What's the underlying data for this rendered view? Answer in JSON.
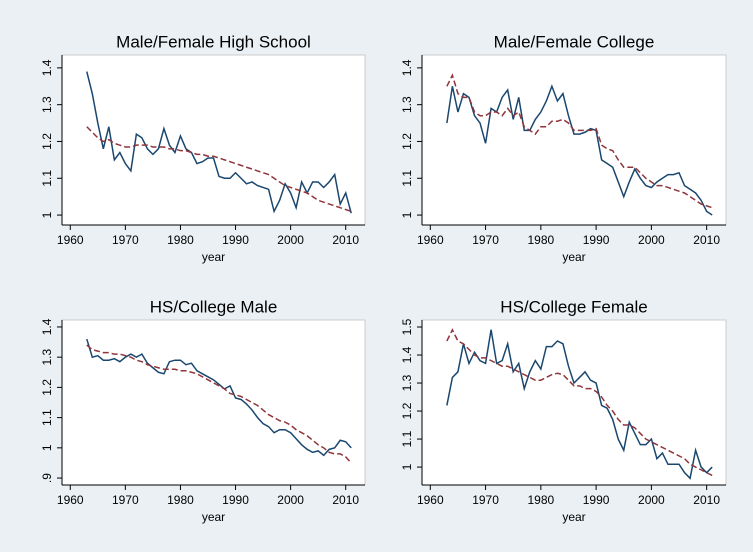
{
  "chart_data": [
    {
      "type": "line",
      "title": "Male/Female High School",
      "xlabel": "year",
      "x": [
        1963,
        1964,
        1965,
        1966,
        1967,
        1968,
        1969,
        1970,
        1971,
        1972,
        1973,
        1974,
        1975,
        1976,
        1977,
        1978,
        1979,
        1980,
        1981,
        1982,
        1983,
        1984,
        1985,
        1986,
        1987,
        1988,
        1989,
        1990,
        1991,
        1992,
        1993,
        1994,
        1995,
        1996,
        1997,
        1998,
        1999,
        2000,
        2001,
        2002,
        2003,
        2004,
        2005,
        2006,
        2007,
        2008,
        2009,
        2010,
        2011
      ],
      "series": [
        {
          "color": "#1a476f",
          "values": [
            1.39,
            1.33,
            1.25,
            1.18,
            1.24,
            1.15,
            1.17,
            1.14,
            1.12,
            1.22,
            1.21,
            1.18,
            1.165,
            1.18,
            1.235,
            1.19,
            1.17,
            1.215,
            1.18,
            1.17,
            1.14,
            1.145,
            1.155,
            1.155,
            1.105,
            1.1,
            1.1,
            1.115,
            1.1,
            1.085,
            1.09,
            1.08,
            1.075,
            1.07,
            1.01,
            1.04,
            1.085,
            1.06,
            1.02,
            1.09,
            1.06,
            1.09,
            1.09,
            1.075,
            1.09,
            1.11,
            1.03,
            1.06,
            1.005
          ]
        },
        {
          "color": "#90353b",
          "dashed": true,
          "values": [
            1.24,
            1.225,
            1.21,
            1.2,
            1.205,
            1.195,
            1.19,
            1.185,
            1.185,
            1.19,
            1.19,
            1.19,
            1.185,
            1.185,
            1.185,
            1.18,
            1.18,
            1.175,
            1.175,
            1.17,
            1.165,
            1.165,
            1.16,
            1.16,
            1.155,
            1.15,
            1.145,
            1.14,
            1.135,
            1.13,
            1.125,
            1.12,
            1.115,
            1.11,
            1.1,
            1.09,
            1.08,
            1.075,
            1.07,
            1.065,
            1.06,
            1.05,
            1.04,
            1.035,
            1.03,
            1.025,
            1.02,
            1.015,
            1.01
          ]
        }
      ],
      "xlim": [
        1958.5,
        2013.5
      ],
      "xticks": [
        1960,
        1970,
        1980,
        1990,
        2000,
        2010
      ],
      "ylim": [
        0.973,
        1.435
      ],
      "yticks": [
        1,
        1.1,
        1.2,
        1.3,
        1.4
      ]
    },
    {
      "type": "line",
      "title": "Male/Female College",
      "xlabel": "year",
      "x": [
        1963,
        1964,
        1965,
        1966,
        1967,
        1968,
        1969,
        1970,
        1971,
        1972,
        1973,
        1974,
        1975,
        1976,
        1977,
        1978,
        1979,
        1980,
        1981,
        1982,
        1983,
        1984,
        1985,
        1986,
        1987,
        1988,
        1989,
        1990,
        1991,
        1992,
        1993,
        1994,
        1995,
        1996,
        1997,
        1998,
        1999,
        2000,
        2001,
        2002,
        2003,
        2004,
        2005,
        2006,
        2007,
        2008,
        2009,
        2010,
        2011
      ],
      "series": [
        {
          "color": "#1a476f",
          "values": [
            1.25,
            1.35,
            1.28,
            1.33,
            1.32,
            1.27,
            1.25,
            1.195,
            1.29,
            1.28,
            1.32,
            1.34,
            1.26,
            1.32,
            1.23,
            1.23,
            1.26,
            1.28,
            1.31,
            1.35,
            1.31,
            1.33,
            1.27,
            1.22,
            1.22,
            1.225,
            1.235,
            1.23,
            1.15,
            1.14,
            1.13,
            1.09,
            1.05,
            1.09,
            1.125,
            1.1,
            1.08,
            1.075,
            1.09,
            1.1,
            1.11,
            1.11,
            1.115,
            1.08,
            1.07,
            1.06,
            1.04,
            1.01,
            1.0
          ]
        },
        {
          "color": "#90353b",
          "dashed": true,
          "values": [
            1.35,
            1.38,
            1.33,
            1.32,
            1.32,
            1.28,
            1.27,
            1.27,
            1.28,
            1.28,
            1.27,
            1.29,
            1.27,
            1.28,
            1.24,
            1.23,
            1.22,
            1.24,
            1.24,
            1.255,
            1.255,
            1.26,
            1.25,
            1.23,
            1.23,
            1.23,
            1.23,
            1.235,
            1.19,
            1.18,
            1.175,
            1.15,
            1.13,
            1.13,
            1.13,
            1.115,
            1.1,
            1.09,
            1.08,
            1.08,
            1.075,
            1.07,
            1.065,
            1.06,
            1.05,
            1.04,
            1.03,
            1.025,
            1.02
          ]
        }
      ],
      "xlim": [
        1958.5,
        2013.5
      ],
      "xticks": [
        1960,
        1970,
        1980,
        1990,
        2000,
        2010
      ],
      "ylim": [
        0.973,
        1.435
      ],
      "yticks": [
        1,
        1.1,
        1.2,
        1.3,
        1.4
      ]
    },
    {
      "type": "line",
      "title": "HS/College Male",
      "xlabel": "year",
      "x": [
        1963,
        1964,
        1965,
        1966,
        1967,
        1968,
        1969,
        1970,
        1971,
        1972,
        1973,
        1974,
        1975,
        1976,
        1977,
        1978,
        1979,
        1980,
        1981,
        1982,
        1983,
        1984,
        1985,
        1986,
        1987,
        1988,
        1989,
        1990,
        1991,
        1992,
        1993,
        1994,
        1995,
        1996,
        1997,
        1998,
        1999,
        2000,
        2001,
        2002,
        2003,
        2004,
        2005,
        2006,
        2007,
        2008,
        2009,
        2010,
        2011
      ],
      "series": [
        {
          "color": "#1a476f",
          "values": [
            1.36,
            1.3,
            1.305,
            1.29,
            1.29,
            1.295,
            1.285,
            1.3,
            1.31,
            1.3,
            1.31,
            1.28,
            1.265,
            1.25,
            1.245,
            1.285,
            1.29,
            1.29,
            1.275,
            1.28,
            1.255,
            1.245,
            1.235,
            1.225,
            1.21,
            1.195,
            1.205,
            1.165,
            1.16,
            1.145,
            1.125,
            1.1,
            1.08,
            1.07,
            1.05,
            1.06,
            1.06,
            1.05,
            1.03,
            1.01,
            0.995,
            0.985,
            0.99,
            0.975,
            0.995,
            1.0,
            1.025,
            1.02,
            1.0
          ]
        },
        {
          "color": "#90353b",
          "dashed": true,
          "values": [
            1.34,
            1.325,
            1.32,
            1.315,
            1.315,
            1.31,
            1.31,
            1.305,
            1.3,
            1.29,
            1.285,
            1.275,
            1.27,
            1.265,
            1.26,
            1.26,
            1.26,
            1.255,
            1.255,
            1.25,
            1.245,
            1.235,
            1.225,
            1.215,
            1.205,
            1.195,
            1.18,
            1.175,
            1.17,
            1.16,
            1.15,
            1.14,
            1.125,
            1.11,
            1.1,
            1.09,
            1.085,
            1.075,
            1.06,
            1.05,
            1.04,
            1.025,
            1.01,
            1.0,
            0.985,
            0.98,
            0.98,
            0.97,
            0.95
          ]
        }
      ],
      "xlim": [
        1958.5,
        2013.5
      ],
      "xticks": [
        1960,
        1970,
        1980,
        1990,
        2000,
        2010
      ],
      "ylim": [
        0.877,
        1.423
      ],
      "yticks": [
        {
          "value": 0.9,
          "label": ".9"
        },
        1,
        1.1,
        1.2,
        1.3,
        1.4
      ]
    },
    {
      "type": "line",
      "title": "HS/College Female",
      "xlabel": "year",
      "x": [
        1963,
        1964,
        1965,
        1966,
        1967,
        1968,
        1969,
        1970,
        1971,
        1972,
        1973,
        1974,
        1975,
        1976,
        1977,
        1978,
        1979,
        1980,
        1981,
        1982,
        1983,
        1984,
        1985,
        1986,
        1987,
        1988,
        1989,
        1990,
        1991,
        1992,
        1993,
        1994,
        1995,
        1996,
        1997,
        1998,
        1999,
        2000,
        2001,
        2002,
        2003,
        2004,
        2005,
        2006,
        2007,
        2008,
        2009,
        2010,
        2011
      ],
      "series": [
        {
          "color": "#1a476f",
          "values": [
            1.22,
            1.32,
            1.34,
            1.44,
            1.37,
            1.41,
            1.38,
            1.37,
            1.49,
            1.37,
            1.38,
            1.44,
            1.34,
            1.37,
            1.28,
            1.34,
            1.38,
            1.35,
            1.43,
            1.43,
            1.45,
            1.44,
            1.36,
            1.3,
            1.32,
            1.34,
            1.31,
            1.3,
            1.22,
            1.21,
            1.17,
            1.1,
            1.06,
            1.16,
            1.12,
            1.08,
            1.08,
            1.1,
            1.03,
            1.05,
            1.01,
            1.01,
            1.01,
            0.98,
            0.96,
            1.06,
            1.0,
            0.98,
            1.0
          ]
        },
        {
          "color": "#90353b",
          "dashed": true,
          "values": [
            1.45,
            1.49,
            1.45,
            1.44,
            1.42,
            1.4,
            1.39,
            1.39,
            1.38,
            1.37,
            1.36,
            1.36,
            1.35,
            1.34,
            1.33,
            1.32,
            1.31,
            1.31,
            1.32,
            1.33,
            1.335,
            1.33,
            1.31,
            1.29,
            1.29,
            1.28,
            1.28,
            1.27,
            1.25,
            1.22,
            1.2,
            1.17,
            1.15,
            1.15,
            1.14,
            1.12,
            1.1,
            1.09,
            1.08,
            1.07,
            1.06,
            1.05,
            1.04,
            1.03,
            1.01,
            1.0,
            0.99,
            0.98,
            0.97
          ]
        }
      ],
      "xlim": [
        1958.5,
        2013.5
      ],
      "xticks": [
        1960,
        1970,
        1980,
        1990,
        2000,
        2010
      ],
      "ylim": [
        0.936,
        1.525
      ],
      "yticks": [
        1,
        1.1,
        1.2,
        1.3,
        1.4,
        1.5
      ]
    }
  ]
}
